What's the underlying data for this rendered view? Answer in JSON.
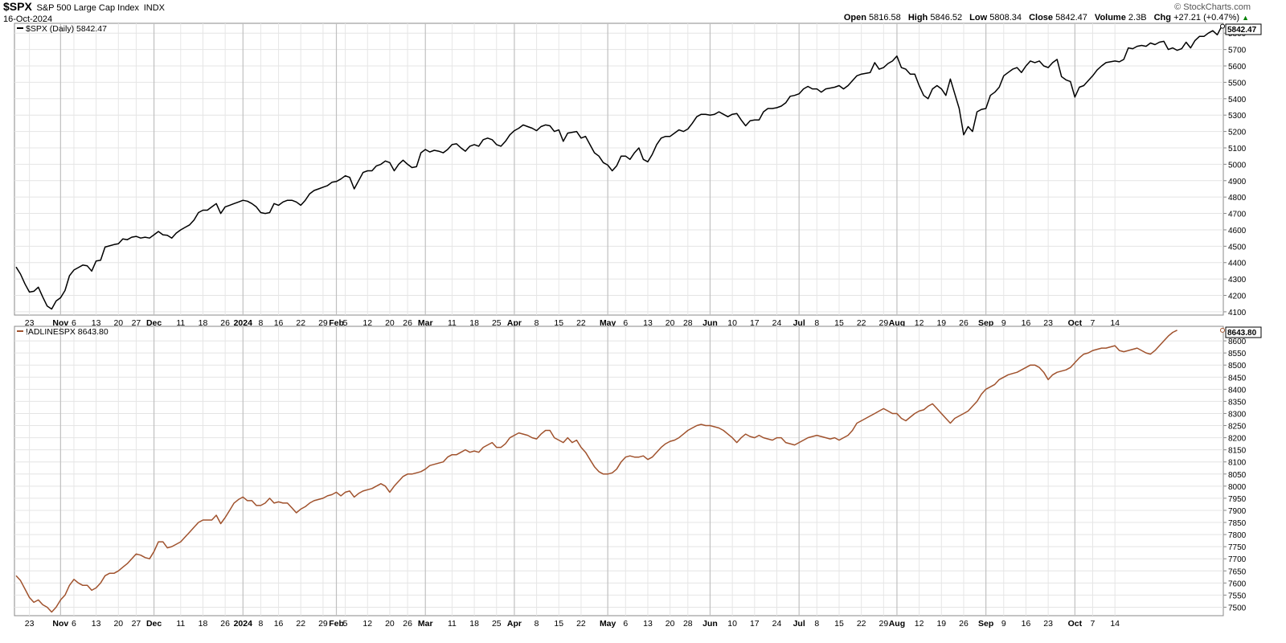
{
  "header": {
    "symbol": "$SPX",
    "name": "S&P 500 Large Cap Index",
    "exchange": "INDX",
    "date": "16-Oct-2024",
    "credit": "© StockCharts.com",
    "open_label": "Open",
    "open": "5816.58",
    "high_label": "High",
    "high": "5846.52",
    "low_label": "Low",
    "low": "5808.34",
    "close_label": "Close",
    "close": "5842.47",
    "volume_label": "Volume",
    "volume": "2.3B",
    "chg_label": "Chg",
    "chg": "+27.21 (+0.47%)",
    "up_color": "#008000"
  },
  "chart_data": [
    {
      "type": "line",
      "legend": "$SPX (Daily) 5842.47",
      "last_value_label": "5842.47",
      "color": "#000000",
      "ylim": [
        4080,
        5860
      ],
      "y_ticks": [
        4100,
        4200,
        4300,
        4400,
        4500,
        4600,
        4700,
        4800,
        4900,
        5000,
        5100,
        5200,
        5300,
        5400,
        5500,
        5600,
        5700,
        5800
      ],
      "grid": true,
      "axis_side": "right",
      "series": [
        {
          "values": [
            4373,
            4330,
            4270,
            4220,
            4225,
            4250,
            4190,
            4135,
            4117,
            4166,
            4186,
            4230,
            4320,
            4355,
            4370,
            4385,
            4380,
            4348,
            4410,
            4415,
            4495,
            4502,
            4510,
            4515,
            4545,
            4540,
            4555,
            4560,
            4550,
            4555,
            4550,
            4570,
            4590,
            4570,
            4567,
            4550,
            4580,
            4600,
            4615,
            4630,
            4660,
            4705,
            4720,
            4720,
            4740,
            4760,
            4700,
            4740,
            4750,
            4760,
            4770,
            4780,
            4775,
            4760,
            4740,
            4705,
            4700,
            4705,
            4760,
            4750,
            4770,
            4780,
            4780,
            4770,
            4750,
            4780,
            4820,
            4840,
            4850,
            4860,
            4870,
            4890,
            4895,
            4910,
            4930,
            4920,
            4850,
            4900,
            4950,
            4960,
            4960,
            4990,
            5000,
            5020,
            5010,
            4960,
            5000,
            5025,
            5000,
            4980,
            4985,
            5070,
            5090,
            5075,
            5085,
            5080,
            5070,
            5090,
            5120,
            5125,
            5100,
            5080,
            5110,
            5120,
            5110,
            5150,
            5160,
            5150,
            5120,
            5110,
            5140,
            5180,
            5205,
            5220,
            5240,
            5230,
            5220,
            5205,
            5230,
            5240,
            5235,
            5200,
            5210,
            5140,
            5190,
            5195,
            5200,
            5160,
            5170,
            5120,
            5070,
            5050,
            5010,
            4995,
            4960,
            4990,
            5050,
            5050,
            5030,
            5070,
            5100,
            5030,
            5015,
            5060,
            5120,
            5160,
            5170,
            5170,
            5190,
            5210,
            5200,
            5215,
            5250,
            5290,
            5305,
            5305,
            5300,
            5305,
            5320,
            5305,
            5290,
            5305,
            5310,
            5270,
            5235,
            5265,
            5270,
            5270,
            5320,
            5340,
            5340,
            5345,
            5355,
            5375,
            5415,
            5420,
            5430,
            5460,
            5475,
            5460,
            5460,
            5440,
            5460,
            5465,
            5470,
            5480,
            5460,
            5480,
            5510,
            5540,
            5550,
            5555,
            5560,
            5620,
            5580,
            5590,
            5615,
            5630,
            5660,
            5590,
            5580,
            5550,
            5550,
            5480,
            5420,
            5400,
            5460,
            5480,
            5460,
            5420,
            5520,
            5430,
            5340,
            5180,
            5230,
            5200,
            5320,
            5335,
            5340,
            5420,
            5440,
            5470,
            5540,
            5560,
            5580,
            5590,
            5560,
            5600,
            5630,
            5620,
            5630,
            5600,
            5590,
            5620,
            5640,
            5535,
            5515,
            5505,
            5410,
            5470,
            5480,
            5510,
            5540,
            5575,
            5600,
            5620,
            5625,
            5630,
            5625,
            5640,
            5710,
            5705,
            5720,
            5725,
            5720,
            5740,
            5730,
            5745,
            5750,
            5700,
            5710,
            5695,
            5705,
            5745,
            5710,
            5755,
            5780,
            5780,
            5800,
            5815,
            5790,
            5842
          ]
        }
      ]
    },
    {
      "type": "line",
      "legend": "!ADLINESPX 8643.80",
      "last_value_label": "8643.80",
      "color": "#a0522d",
      "ylim": [
        7465,
        8660
      ],
      "y_ticks": [
        7500,
        7550,
        7600,
        7650,
        7700,
        7750,
        7800,
        7850,
        7900,
        7950,
        8000,
        8050,
        8100,
        8150,
        8200,
        8250,
        8300,
        8350,
        8400,
        8450,
        8500,
        8550,
        8600
      ],
      "grid": true,
      "axis_side": "right",
      "series": [
        {
          "values": [
            7630,
            7610,
            7575,
            7540,
            7520,
            7530,
            7510,
            7500,
            7480,
            7500,
            7530,
            7550,
            7590,
            7615,
            7600,
            7590,
            7590,
            7570,
            7580,
            7600,
            7630,
            7640,
            7640,
            7650,
            7665,
            7680,
            7700,
            7720,
            7715,
            7705,
            7700,
            7730,
            7770,
            7770,
            7745,
            7750,
            7760,
            7770,
            7790,
            7810,
            7830,
            7850,
            7860,
            7860,
            7860,
            7880,
            7845,
            7870,
            7900,
            7930,
            7945,
            7955,
            7940,
            7940,
            7920,
            7920,
            7930,
            7950,
            7930,
            7935,
            7930,
            7930,
            7910,
            7890,
            7905,
            7915,
            7930,
            7940,
            7945,
            7950,
            7960,
            7965,
            7975,
            7960,
            7975,
            7980,
            7955,
            7970,
            7980,
            7985,
            7990,
            8000,
            8010,
            8000,
            7975,
            8000,
            8020,
            8040,
            8050,
            8050,
            8055,
            8060,
            8070,
            8085,
            8090,
            8095,
            8100,
            8120,
            8130,
            8130,
            8140,
            8150,
            8140,
            8145,
            8140,
            8160,
            8170,
            8180,
            8160,
            8160,
            8175,
            8200,
            8210,
            8220,
            8215,
            8210,
            8200,
            8195,
            8215,
            8230,
            8230,
            8200,
            8190,
            8180,
            8200,
            8180,
            8190,
            8160,
            8140,
            8110,
            8080,
            8060,
            8050,
            8050,
            8055,
            8070,
            8100,
            8120,
            8125,
            8120,
            8120,
            8125,
            8110,
            8120,
            8140,
            8160,
            8175,
            8185,
            8190,
            8200,
            8215,
            8230,
            8240,
            8250,
            8255,
            8250,
            8250,
            8245,
            8240,
            8230,
            8215,
            8200,
            8180,
            8200,
            8215,
            8205,
            8200,
            8210,
            8200,
            8195,
            8190,
            8200,
            8200,
            8180,
            8175,
            8170,
            8180,
            8190,
            8200,
            8205,
            8210,
            8205,
            8200,
            8195,
            8200,
            8190,
            8200,
            8210,
            8230,
            8260,
            8270,
            8280,
            8290,
            8300,
            8310,
            8320,
            8310,
            8300,
            8300,
            8280,
            8270,
            8285,
            8300,
            8310,
            8315,
            8330,
            8340,
            8320,
            8300,
            8280,
            8260,
            8280,
            8290,
            8300,
            8310,
            8330,
            8350,
            8380,
            8400,
            8410,
            8420,
            8440,
            8450,
            8460,
            8465,
            8470,
            8480,
            8490,
            8500,
            8500,
            8490,
            8470,
            8440,
            8460,
            8470,
            8475,
            8480,
            8490,
            8510,
            8530,
            8545,
            8550,
            8560,
            8565,
            8570,
            8570,
            8575,
            8580,
            8560,
            8555,
            8560,
            8565,
            8570,
            8560,
            8550,
            8545,
            8560,
            8580,
            8600,
            8620,
            8635,
            8644
          ]
        }
      ]
    }
  ],
  "x_axis": {
    "labels": [
      {
        "i": 3,
        "text": "23",
        "bold": false
      },
      {
        "i": 10,
        "text": "Nov",
        "bold": true
      },
      {
        "i": 13,
        "text": "6",
        "bold": false
      },
      {
        "i": 18,
        "text": "13",
        "bold": false
      },
      {
        "i": 23,
        "text": "20",
        "bold": false
      },
      {
        "i": 27,
        "text": "27",
        "bold": false
      },
      {
        "i": 31,
        "text": "Dec",
        "bold": true
      },
      {
        "i": 37,
        "text": "11",
        "bold": false
      },
      {
        "i": 42,
        "text": "18",
        "bold": false
      },
      {
        "i": 47,
        "text": "26",
        "bold": false
      },
      {
        "i": 51,
        "text": "2024",
        "bold": true
      },
      {
        "i": 55,
        "text": "8",
        "bold": false
      },
      {
        "i": 59,
        "text": "16",
        "bold": false
      },
      {
        "i": 64,
        "text": "22",
        "bold": false
      },
      {
        "i": 69,
        "text": "29",
        "bold": false
      },
      {
        "i": 72,
        "text": "Feb",
        "bold": true
      },
      {
        "i": 74,
        "text": "5",
        "bold": false
      },
      {
        "i": 79,
        "text": "12",
        "bold": false
      },
      {
        "i": 84,
        "text": "20",
        "bold": false
      },
      {
        "i": 88,
        "text": "26",
        "bold": false
      },
      {
        "i": 92,
        "text": "Mar",
        "bold": true
      },
      {
        "i": 98,
        "text": "11",
        "bold": false
      },
      {
        "i": 103,
        "text": "18",
        "bold": false
      },
      {
        "i": 108,
        "text": "25",
        "bold": false
      },
      {
        "i": 112,
        "text": "Apr",
        "bold": true
      },
      {
        "i": 117,
        "text": "8",
        "bold": false
      },
      {
        "i": 122,
        "text": "15",
        "bold": false
      },
      {
        "i": 127,
        "text": "22",
        "bold": false
      },
      {
        "i": 133,
        "text": "May",
        "bold": true
      },
      {
        "i": 137,
        "text": "6",
        "bold": false
      },
      {
        "i": 142,
        "text": "13",
        "bold": false
      },
      {
        "i": 147,
        "text": "20",
        "bold": false
      },
      {
        "i": 151,
        "text": "28",
        "bold": false
      },
      {
        "i": 156,
        "text": "Jun",
        "bold": true
      },
      {
        "i": 161,
        "text": "10",
        "bold": false
      },
      {
        "i": 166,
        "text": "17",
        "bold": false
      },
      {
        "i": 171,
        "text": "24",
        "bold": false
      },
      {
        "i": 176,
        "text": "Jul",
        "bold": true
      },
      {
        "i": 180,
        "text": "8",
        "bold": false
      },
      {
        "i": 185,
        "text": "15",
        "bold": false
      },
      {
        "i": 190,
        "text": "22",
        "bold": false
      },
      {
        "i": 195,
        "text": "29",
        "bold": false
      },
      {
        "i": 198,
        "text": "Aug",
        "bold": true
      },
      {
        "i": 203,
        "text": "12",
        "bold": false
      },
      {
        "i": 208,
        "text": "19",
        "bold": false
      },
      {
        "i": 213,
        "text": "26",
        "bold": false
      },
      {
        "i": 218,
        "text": "Sep",
        "bold": true
      },
      {
        "i": 222,
        "text": "9",
        "bold": false
      },
      {
        "i": 227,
        "text": "16",
        "bold": false
      },
      {
        "i": 232,
        "text": "23",
        "bold": false
      },
      {
        "i": 238,
        "text": "Oct",
        "bold": true
      },
      {
        "i": 242,
        "text": "7",
        "bold": false
      },
      {
        "i": 247,
        "text": "14",
        "bold": false
      }
    ],
    "month_lines": [
      10,
      31,
      51,
      72,
      92,
      112,
      133,
      156,
      176,
      198,
      218,
      238
    ]
  }
}
